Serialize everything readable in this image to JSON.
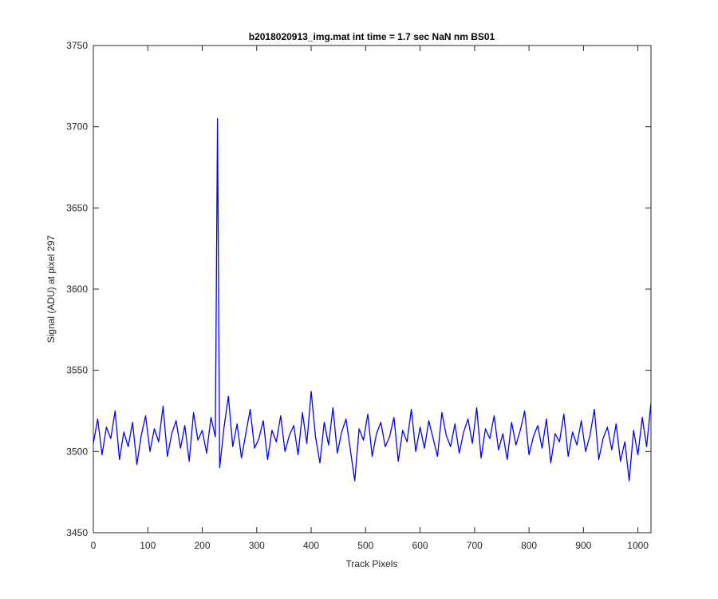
{
  "chart_data": {
    "type": "line",
    "title": "b2018020913_img.mat int time = 1.7 sec  NaN nm BS01",
    "xlabel": "Track Pixels",
    "ylabel": "Signal (ADU) at pixel 297",
    "color": "#0000ff",
    "xlim": [
      0,
      1024
    ],
    "ylim": [
      3450,
      3750
    ],
    "xticks": [
      0,
      100,
      200,
      300,
      400,
      500,
      600,
      700,
      800,
      900,
      1000
    ],
    "yticks": [
      3450,
      3500,
      3550,
      3600,
      3650,
      3700,
      3750
    ],
    "grid": false,
    "x": [
      0,
      8,
      16,
      24,
      32,
      40,
      48,
      56,
      64,
      72,
      80,
      88,
      96,
      104,
      112,
      120,
      128,
      136,
      144,
      152,
      160,
      168,
      176,
      184,
      192,
      200,
      208,
      216,
      224,
      228,
      232,
      240,
      248,
      256,
      264,
      272,
      280,
      288,
      296,
      304,
      312,
      320,
      328,
      336,
      344,
      352,
      360,
      368,
      376,
      384,
      392,
      400,
      408,
      416,
      424,
      432,
      440,
      448,
      456,
      464,
      472,
      480,
      488,
      496,
      504,
      512,
      520,
      528,
      536,
      544,
      552,
      560,
      568,
      576,
      584,
      592,
      600,
      608,
      616,
      624,
      632,
      640,
      648,
      656,
      664,
      672,
      680,
      688,
      696,
      704,
      712,
      720,
      728,
      736,
      744,
      752,
      760,
      768,
      776,
      784,
      792,
      800,
      808,
      816,
      824,
      832,
      840,
      848,
      856,
      864,
      872,
      880,
      888,
      896,
      904,
      912,
      920,
      928,
      936,
      944,
      952,
      960,
      968,
      976,
      984,
      992,
      1000,
      1008,
      1016,
      1024
    ],
    "values": [
      3505,
      3520,
      3498,
      3515,
      3508,
      3525,
      3495,
      3512,
      3503,
      3518,
      3492,
      3510,
      3522,
      3500,
      3514,
      3506,
      3528,
      3497,
      3511,
      3519,
      3502,
      3516,
      3494,
      3524,
      3507,
      3513,
      3499,
      3521,
      3509,
      3705,
      3490,
      3515,
      3534,
      3503,
      3517,
      3496,
      3511,
      3526,
      3502,
      3508,
      3519,
      3495,
      3513,
      3506,
      3522,
      3500,
      3510,
      3516,
      3498,
      3524,
      3505,
      3537,
      3509,
      3493,
      3518,
      3504,
      3527,
      3499,
      3512,
      3520,
      3501,
      3482,
      3514,
      3507,
      3523,
      3497,
      3511,
      3518,
      3503,
      3509,
      3521,
      3494,
      3513,
      3506,
      3526,
      3500,
      3515,
      3502,
      3519,
      3508,
      3497,
      3524,
      3510,
      3503,
      3517,
      3499,
      3512,
      3520,
      3505,
      3527,
      3496,
      3514,
      3508,
      3522,
      3501,
      3511,
      3495,
      3518,
      3504,
      3513,
      3525,
      3498,
      3509,
      3516,
      3502,
      3520,
      3493,
      3511,
      3506,
      3523,
      3497,
      3512,
      3504,
      3519,
      3500,
      3510,
      3526,
      3495,
      3508,
      3515,
      3501,
      3517,
      3494,
      3506,
      3482,
      3513,
      3498,
      3521,
      3503,
      3530
    ]
  }
}
